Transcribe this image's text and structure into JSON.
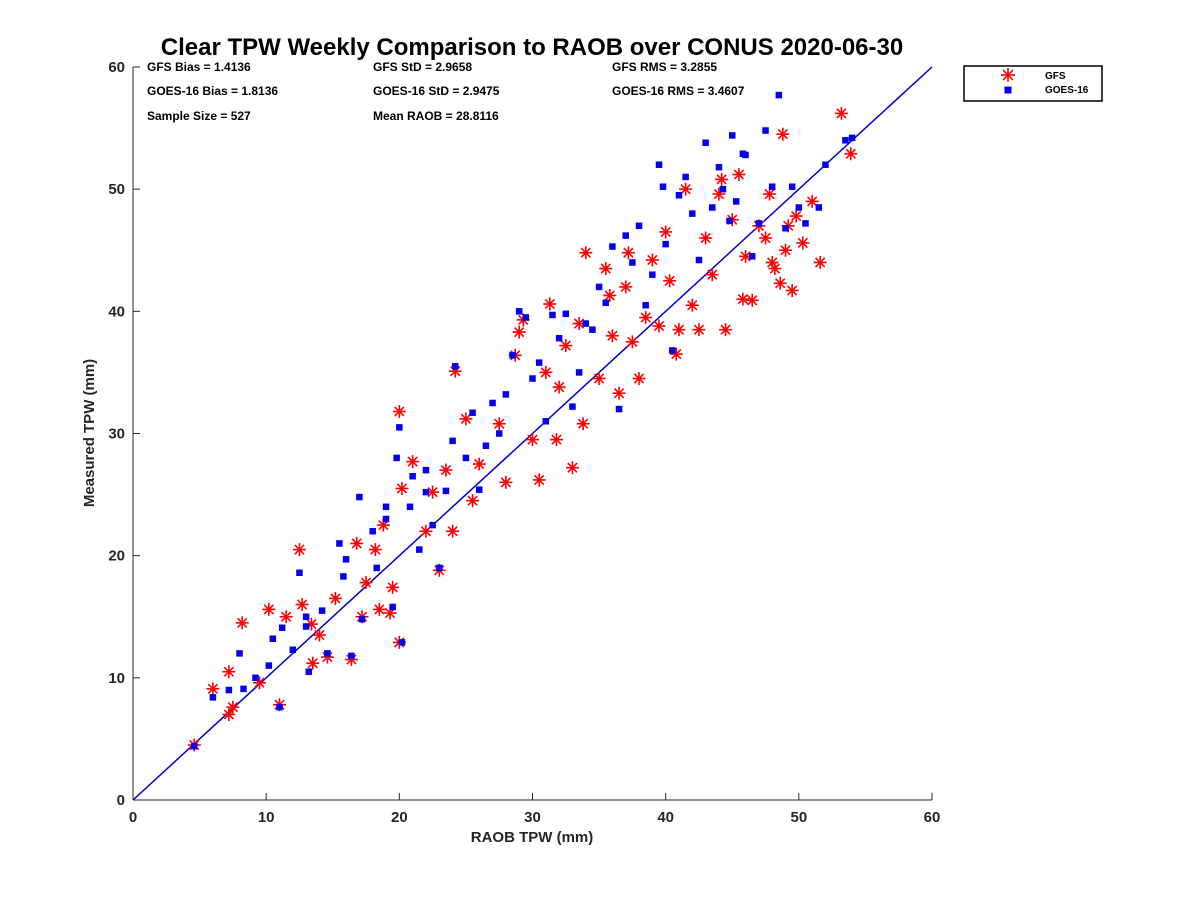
{
  "chart_data": {
    "type": "scatter",
    "title": "Clear TPW Weekly Comparison to RAOB over CONUS 2020-06-30",
    "xlabel": "RAOB TPW (mm)",
    "ylabel": "Measured TPW (mm)",
    "xlim": [
      0,
      60
    ],
    "ylim": [
      0,
      60
    ],
    "xticks": [
      "0",
      "10",
      "20",
      "30",
      "40",
      "50",
      "60"
    ],
    "yticks": [
      "0",
      "10",
      "20",
      "30",
      "40",
      "50",
      "60"
    ],
    "grid": false,
    "legend_position": "outside-top-right",
    "reference_line": {
      "name": "1:1 line",
      "points": [
        [
          0,
          0
        ],
        [
          60,
          60
        ]
      ],
      "color": "#0000cc"
    },
    "stats": [
      [
        "GFS Bias = 1.4136",
        "GFS StD = 2.9658",
        "GFS RMS = 3.2855"
      ],
      [
        "GOES-16 Bias = 1.8136",
        "GOES-16 StD = 2.9475",
        "GOES-16 RMS = 3.4607"
      ],
      [
        "Sample Size = 527",
        "Mean RAOB = 28.8116",
        ""
      ]
    ],
    "series": [
      {
        "name": "GFS",
        "marker": "asterisk",
        "color": "#ff0000",
        "points": [
          [
            4.6,
            4.5
          ],
          [
            6,
            9.1
          ],
          [
            7.2,
            7
          ],
          [
            7.5,
            7.6
          ],
          [
            7.2,
            10.5
          ],
          [
            8.2,
            14.5
          ],
          [
            9.5,
            9.6
          ],
          [
            10.2,
            15.6
          ],
          [
            11,
            7.8
          ],
          [
            11.5,
            15
          ],
          [
            12.5,
            20.5
          ],
          [
            12.7,
            16
          ],
          [
            13.4,
            14.4
          ],
          [
            13.5,
            11.2
          ],
          [
            14.6,
            11.7
          ],
          [
            15.2,
            16.5
          ],
          [
            16.4,
            11.5
          ],
          [
            16.8,
            21
          ],
          [
            17.2,
            15
          ],
          [
            17.5,
            17.8
          ],
          [
            18.2,
            20.5
          ],
          [
            18.5,
            15.6
          ],
          [
            19.3,
            15.3
          ],
          [
            19.5,
            17.4
          ],
          [
            20,
            12.9
          ],
          [
            20,
            31.8
          ],
          [
            20.2,
            25.5
          ],
          [
            21,
            27.7
          ],
          [
            22,
            22
          ],
          [
            23,
            18.8
          ],
          [
            23.5,
            27
          ],
          [
            24,
            22
          ],
          [
            24.2,
            35.1
          ],
          [
            25,
            31.2
          ],
          [
            25.5,
            24.5
          ],
          [
            26,
            27.5
          ],
          [
            27.5,
            30.8
          ],
          [
            28,
            26
          ],
          [
            28.7,
            36.4
          ],
          [
            29,
            38.3
          ],
          [
            29.3,
            39.3
          ],
          [
            30,
            29.5
          ],
          [
            30.5,
            26.2
          ],
          [
            31,
            35
          ],
          [
            31.3,
            40.6
          ],
          [
            31.8,
            29.5
          ],
          [
            32,
            33.8
          ],
          [
            32.5,
            37.2
          ],
          [
            33,
            27.2
          ],
          [
            33.5,
            39
          ],
          [
            33.8,
            30.8
          ],
          [
            34,
            44.8
          ],
          [
            35,
            34.5
          ],
          [
            35.5,
            43.5
          ],
          [
            35.8,
            41.3
          ],
          [
            36,
            38
          ],
          [
            36.5,
            33.3
          ],
          [
            37,
            42
          ],
          [
            37.2,
            44.8
          ],
          [
            37.5,
            37.5
          ],
          [
            38,
            34.5
          ],
          [
            38.5,
            39.5
          ],
          [
            39,
            44.2
          ],
          [
            39.5,
            38.8
          ],
          [
            40,
            46.5
          ],
          [
            40.3,
            42.5
          ],
          [
            40.8,
            36.5
          ],
          [
            41,
            38.5
          ],
          [
            41.5,
            50
          ],
          [
            42,
            40.5
          ],
          [
            42.5,
            38.5
          ],
          [
            43,
            46
          ],
          [
            43.5,
            43
          ],
          [
            44,
            49.6
          ],
          [
            44.2,
            50.8
          ],
          [
            44.5,
            38.5
          ],
          [
            45,
            47.5
          ],
          [
            45.5,
            51.2
          ],
          [
            45.8,
            41
          ],
          [
            46,
            44.5
          ],
          [
            46.5,
            40.9
          ],
          [
            47,
            47
          ],
          [
            47.5,
            46
          ],
          [
            47.8,
            49.6
          ],
          [
            48,
            44
          ],
          [
            48.2,
            43.5
          ],
          [
            48.6,
            42.3
          ],
          [
            48.8,
            54.5
          ],
          [
            49,
            45
          ],
          [
            49.2,
            47
          ],
          [
            49.5,
            41.7
          ],
          [
            49.8,
            47.8
          ],
          [
            50.3,
            45.6
          ],
          [
            51,
            49
          ],
          [
            51.6,
            44
          ],
          [
            53.2,
            56.2
          ],
          [
            53.9,
            52.9
          ],
          [
            22.5,
            25.2
          ],
          [
            18.8,
            22.5
          ],
          [
            14,
            13.5
          ]
        ]
      },
      {
        "name": "GOES-16",
        "marker": "square",
        "color": "#0000ee",
        "points": [
          [
            4.6,
            4.4
          ],
          [
            6,
            8.4
          ],
          [
            7.2,
            9
          ],
          [
            8,
            12
          ],
          [
            8.3,
            9.1
          ],
          [
            9.2,
            10
          ],
          [
            10.2,
            11
          ],
          [
            10.5,
            13.2
          ],
          [
            11,
            7.6
          ],
          [
            11.2,
            14.1
          ],
          [
            12,
            12.3
          ],
          [
            12.5,
            18.6
          ],
          [
            13,
            15
          ],
          [
            13.2,
            10.5
          ],
          [
            14.2,
            15.5
          ],
          [
            14.6,
            12
          ],
          [
            15.5,
            21
          ],
          [
            15.8,
            18.3
          ],
          [
            16.4,
            11.8
          ],
          [
            17,
            24.8
          ],
          [
            17.2,
            14.8
          ],
          [
            18,
            22
          ],
          [
            18.3,
            19
          ],
          [
            19,
            24
          ],
          [
            19.5,
            15.8
          ],
          [
            19.8,
            28
          ],
          [
            20,
            30.5
          ],
          [
            20.2,
            12.9
          ],
          [
            20.8,
            24
          ],
          [
            21,
            26.5
          ],
          [
            21.5,
            20.5
          ],
          [
            22,
            27
          ],
          [
            22.5,
            22.5
          ],
          [
            23,
            19
          ],
          [
            23.5,
            25.3
          ],
          [
            24,
            29.4
          ],
          [
            24.2,
            35.5
          ],
          [
            25,
            28
          ],
          [
            25.5,
            31.7
          ],
          [
            26,
            25.4
          ],
          [
            26.5,
            29
          ],
          [
            27,
            32.5
          ],
          [
            27.5,
            30
          ],
          [
            28,
            33.2
          ],
          [
            28.5,
            36.4
          ],
          [
            29,
            40
          ],
          [
            29.5,
            39.5
          ],
          [
            30,
            34.5
          ],
          [
            30.5,
            35.8
          ],
          [
            31,
            31
          ],
          [
            31.5,
            39.7
          ],
          [
            32,
            37.8
          ],
          [
            32.5,
            39.8
          ],
          [
            33,
            32.2
          ],
          [
            33.5,
            35
          ],
          [
            34,
            39
          ],
          [
            34.5,
            38.5
          ],
          [
            35,
            42
          ],
          [
            35.5,
            40.7
          ],
          [
            36,
            45.3
          ],
          [
            36.5,
            32
          ],
          [
            37,
            46.2
          ],
          [
            37.5,
            44
          ],
          [
            38,
            47
          ],
          [
            38.5,
            40.5
          ],
          [
            39,
            43
          ],
          [
            39.5,
            52
          ],
          [
            39.8,
            50.2
          ],
          [
            40,
            45.5
          ],
          [
            40.5,
            36.8
          ],
          [
            41,
            49.5
          ],
          [
            41.5,
            51
          ],
          [
            42,
            48
          ],
          [
            42.5,
            44.2
          ],
          [
            43,
            53.8
          ],
          [
            43.5,
            48.5
          ],
          [
            44,
            51.8
          ],
          [
            44.3,
            50
          ],
          [
            44.8,
            47.4
          ],
          [
            45,
            54.4
          ],
          [
            45.3,
            49
          ],
          [
            45.8,
            52.9
          ],
          [
            46,
            52.8
          ],
          [
            46.5,
            44.5
          ],
          [
            47,
            47.2
          ],
          [
            47.5,
            54.8
          ],
          [
            48,
            50.2
          ],
          [
            48.5,
            57.7
          ],
          [
            49,
            46.8
          ],
          [
            49.5,
            50.2
          ],
          [
            50,
            48.5
          ],
          [
            50.5,
            47.2
          ],
          [
            51.5,
            48.5
          ],
          [
            52,
            52
          ],
          [
            53.5,
            54
          ],
          [
            54,
            54.2
          ],
          [
            22,
            25.2
          ],
          [
            19,
            23
          ],
          [
            16,
            19.7
          ],
          [
            13,
            14.2
          ]
        ]
      }
    ]
  }
}
